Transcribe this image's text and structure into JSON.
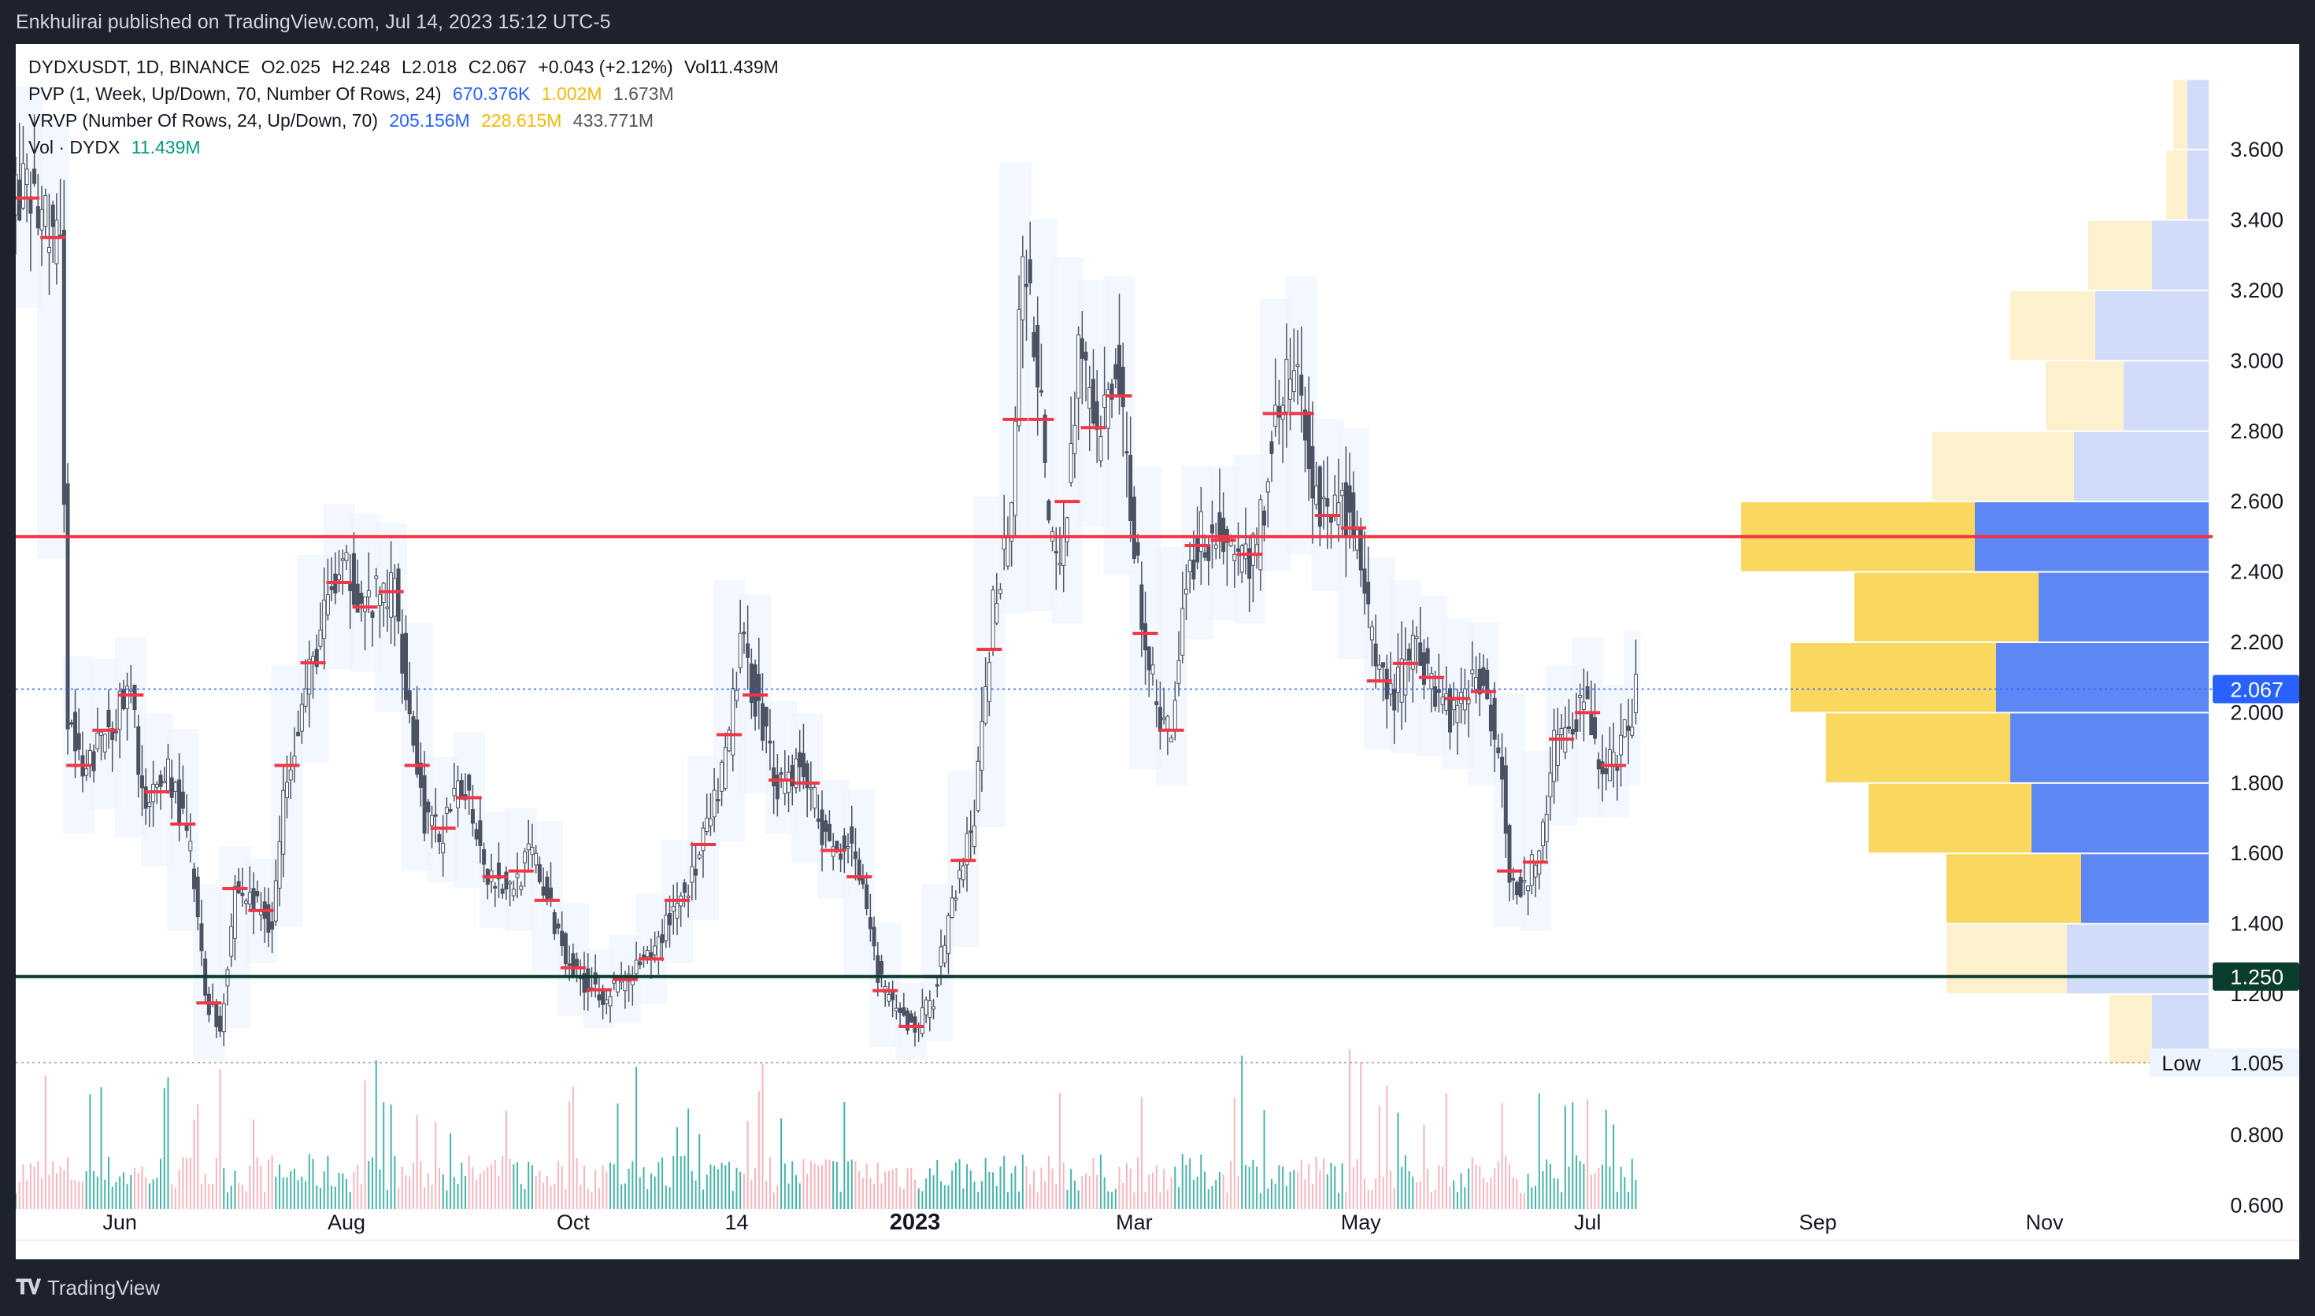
{
  "header": {
    "published_text": "Enkhulirai published on TradingView.com, Jul 14, 2023 15:12 UTC-5"
  },
  "legend": {
    "symbol_line": "DYDXUSDT, 1D, BINANCE",
    "open": "O2.025",
    "high": "H2.248",
    "low": "L2.018",
    "close": "C2.067",
    "change": "+0.043 (+2.12%)",
    "volume": "Vol11.439M",
    "pvp_label": "PVP (1, Week, Up/Down, 70, Number Of Rows, 24)",
    "pvp_up": "670.376K",
    "pvp_down": "1.002M",
    "pvp_total": "1.673M",
    "vrvp_label": "VRVP (Number Of Rows, 24, Up/Down, 70)",
    "vrvp_up": "205.156M",
    "vrvp_down": "228.615M",
    "vrvp_total": "433.771M",
    "vol_label": "Vol · DYDX",
    "vol_value": "11.439M"
  },
  "footer": {
    "brand": "TradingView"
  },
  "chart_data": {
    "type": "candlestick",
    "symbol": "DYDXUSDT",
    "interval": "1D",
    "exchange": "BINANCE",
    "ylim": [
      0.5,
      3.9
    ],
    "y_ticks": [
      0.6,
      0.8,
      1.2,
      1.4,
      1.6,
      1.8,
      2.0,
      2.2,
      2.4,
      2.6,
      2.8,
      3.0,
      3.2,
      3.4,
      3.6
    ],
    "y_tick_labels": [
      "0.600",
      "0.800",
      "1.200",
      "1.400",
      "1.600",
      "1.800",
      "2.000",
      "2.200",
      "2.400",
      "2.600",
      "2.800",
      "3.000",
      "3.200",
      "3.400",
      "3.600"
    ],
    "x_labels": [
      {
        "label": "Jun",
        "date": "2022-06-01",
        "bold": false
      },
      {
        "label": "Aug",
        "date": "2022-08-01",
        "bold": false
      },
      {
        "label": "Oct",
        "date": "2022-10-01",
        "bold": false
      },
      {
        "label": "14",
        "date": "2022-11-14",
        "bold": false
      },
      {
        "label": "2023",
        "date": "2023-01-01",
        "bold": true
      },
      {
        "label": "Mar",
        "date": "2023-03-01",
        "bold": false
      },
      {
        "label": "May",
        "date": "2023-05-01",
        "bold": false
      },
      {
        "label": "Jul",
        "date": "2023-07-01",
        "bold": false
      },
      {
        "label": "Sep",
        "date": "2023-09-01",
        "bold": false
      },
      {
        "label": "Nov",
        "date": "2023-11-01",
        "bold": false
      }
    ],
    "date_range": [
      "2022-05-04",
      "2023-12-12"
    ],
    "last_candle_date": "2023-07-14",
    "close_path": [
      [
        "2022-05-04",
        3.5
      ],
      [
        "2022-05-12",
        3.4
      ],
      [
        "2022-05-16",
        3.3
      ],
      [
        "2022-05-18",
        2.0
      ],
      [
        "2022-05-22",
        1.8
      ],
      [
        "2022-05-28",
        1.95
      ],
      [
        "2022-06-04",
        2.05
      ],
      [
        "2022-06-08",
        1.7
      ],
      [
        "2022-06-14",
        1.85
      ],
      [
        "2022-06-20",
        1.6
      ],
      [
        "2022-06-24",
        1.2
      ],
      [
        "2022-06-28",
        1.1
      ],
      [
        "2022-07-02",
        1.5
      ],
      [
        "2022-07-08",
        1.45
      ],
      [
        "2022-07-12",
        1.4
      ],
      [
        "2022-07-16",
        1.85
      ],
      [
        "2022-07-22",
        2.1
      ],
      [
        "2022-07-28",
        2.35
      ],
      [
        "2022-08-02",
        2.4
      ],
      [
        "2022-08-06",
        2.3
      ],
      [
        "2022-08-14",
        2.35
      ],
      [
        "2022-08-18",
        2.0
      ],
      [
        "2022-08-22",
        1.7
      ],
      [
        "2022-08-26",
        1.65
      ],
      [
        "2022-09-02",
        1.8
      ],
      [
        "2022-09-08",
        1.55
      ],
      [
        "2022-09-14",
        1.5
      ],
      [
        "2022-09-20",
        1.6
      ],
      [
        "2022-09-26",
        1.4
      ],
      [
        "2022-10-02",
        1.25
      ],
      [
        "2022-10-10",
        1.2
      ],
      [
        "2022-10-16",
        1.25
      ],
      [
        "2022-10-22",
        1.3
      ],
      [
        "2022-10-28",
        1.45
      ],
      [
        "2022-11-03",
        1.55
      ],
      [
        "2022-11-07",
        1.7
      ],
      [
        "2022-11-11",
        1.85
      ],
      [
        "2022-11-15",
        2.2
      ],
      [
        "2022-11-19",
        2.05
      ],
      [
        "2022-11-25",
        1.8
      ],
      [
        "2022-12-01",
        1.85
      ],
      [
        "2022-12-05",
        1.75
      ],
      [
        "2022-12-09",
        1.6
      ],
      [
        "2022-12-15",
        1.65
      ],
      [
        "2022-12-21",
        1.3
      ],
      [
        "2022-12-26",
        1.15
      ],
      [
        "2023-01-01",
        1.1
      ],
      [
        "2023-01-06",
        1.2
      ],
      [
        "2023-01-12",
        1.5
      ],
      [
        "2023-01-17",
        1.7
      ],
      [
        "2023-01-22",
        2.3
      ],
      [
        "2023-01-27",
        2.6
      ],
      [
        "2023-01-30",
        3.3
      ],
      [
        "2023-02-03",
        3.0
      ],
      [
        "2023-02-06",
        2.5
      ],
      [
        "2023-02-10",
        2.45
      ],
      [
        "2023-02-14",
        3.05
      ],
      [
        "2023-02-19",
        2.75
      ],
      [
        "2023-02-24",
        3.0
      ],
      [
        "2023-02-28",
        2.6
      ],
      [
        "2023-03-03",
        2.3
      ],
      [
        "2023-03-07",
        2.0
      ],
      [
        "2023-03-11",
        1.95
      ],
      [
        "2023-03-15",
        2.4
      ],
      [
        "2023-03-19",
        2.5
      ],
      [
        "2023-03-24",
        2.5
      ],
      [
        "2023-03-29",
        2.45
      ],
      [
        "2023-04-03",
        2.45
      ],
      [
        "2023-04-08",
        2.85
      ],
      [
        "2023-04-13",
        3.0
      ],
      [
        "2023-04-17",
        2.7
      ],
      [
        "2023-04-21",
        2.55
      ],
      [
        "2023-04-26",
        2.6
      ],
      [
        "2023-04-30",
        2.5
      ],
      [
        "2023-05-05",
        2.1
      ],
      [
        "2023-05-10",
        2.05
      ],
      [
        "2023-05-15",
        2.2
      ],
      [
        "2023-05-20",
        2.1
      ],
      [
        "2023-05-25",
        2.0
      ],
      [
        "2023-05-30",
        2.1
      ],
      [
        "2023-06-04",
        2.05
      ],
      [
        "2023-06-08",
        1.85
      ],
      [
        "2023-06-10",
        1.55
      ],
      [
        "2023-06-14",
        1.5
      ],
      [
        "2023-06-18",
        1.6
      ],
      [
        "2023-06-22",
        1.9
      ],
      [
        "2023-06-26",
        1.95
      ],
      [
        "2023-06-30",
        2.05
      ],
      [
        "2023-07-04",
        1.85
      ],
      [
        "2023-07-08",
        1.85
      ],
      [
        "2023-07-12",
        1.95
      ],
      [
        "2023-07-14",
        2.067
      ]
    ],
    "weekly_poc_marks_note": "red horizontal weekly point-of-control ticks follow the close path",
    "horizontal_lines": [
      {
        "price": 2.5,
        "color": "#f23645",
        "style": "solid"
      },
      {
        "price": 1.25,
        "color": "#0b3d2e",
        "style": "solid",
        "label": "1.250"
      },
      {
        "price": 2.067,
        "color": "#2962ff",
        "style": "dotted",
        "label": "2.067"
      },
      {
        "price": 1.005,
        "color": "#9598a1",
        "style": "dotted",
        "label": "1.005",
        "tag": "Low"
      }
    ],
    "volume_profile": {
      "row_height": 0.2,
      "rows": [
        {
          "price": 1.1,
          "up": 0.08,
          "down": 0.06,
          "in_va": false
        },
        {
          "price": 1.3,
          "up": 0.2,
          "down": 0.17,
          "in_va": false
        },
        {
          "price": 1.5,
          "up": 0.18,
          "down": 0.19,
          "in_va": true
        },
        {
          "price": 1.7,
          "up": 0.25,
          "down": 0.23,
          "in_va": true
        },
        {
          "price": 1.9,
          "up": 0.28,
          "down": 0.26,
          "in_va": true
        },
        {
          "price": 2.1,
          "up": 0.3,
          "down": 0.29,
          "in_va": true
        },
        {
          "price": 2.3,
          "up": 0.24,
          "down": 0.26,
          "in_va": true
        },
        {
          "price": 2.5,
          "up": 0.33,
          "down": 0.33,
          "in_va": true
        },
        {
          "price": 2.7,
          "up": 0.19,
          "down": 0.2,
          "in_va": false
        },
        {
          "price": 2.9,
          "up": 0.12,
          "down": 0.11,
          "in_va": false
        },
        {
          "price": 3.1,
          "up": 0.16,
          "down": 0.12,
          "in_va": false
        },
        {
          "price": 3.3,
          "up": 0.08,
          "down": 0.09,
          "in_va": false
        },
        {
          "price": 3.5,
          "up": 0.03,
          "down": 0.03,
          "in_va": false
        },
        {
          "price": 3.7,
          "up": 0.03,
          "down": 0.02,
          "in_va": false
        }
      ],
      "colors": {
        "up_va": "#5d87f5",
        "down_va": "#fad75f",
        "up": "#d1dcfb",
        "down": "#fdf0cc"
      }
    },
    "volume_pane": {
      "up_color": "#26a69a",
      "down_color": "#f5a8b0"
    },
    "colors": {
      "up": "#5b6475",
      "down": "#5b6475",
      "poc": "#f23645",
      "accent": "#2962ff"
    }
  }
}
